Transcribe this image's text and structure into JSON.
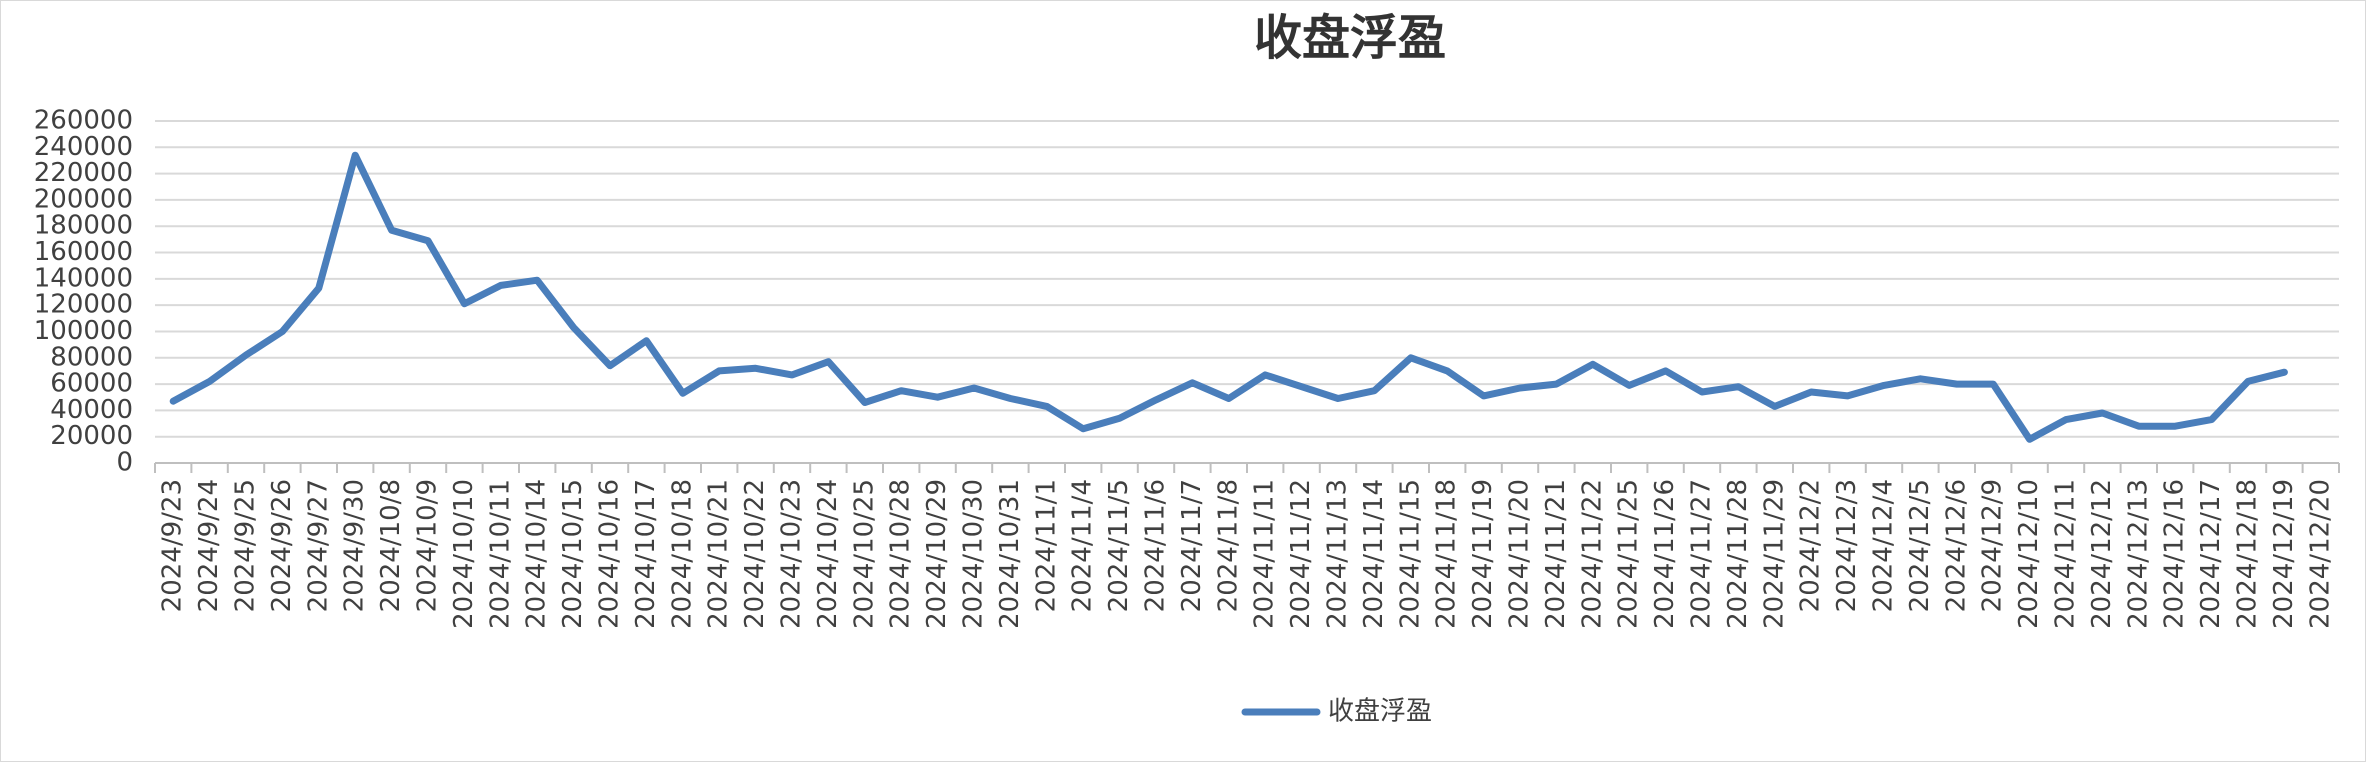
{
  "chart_data": {
    "type": "line",
    "title": "收盘浮盈",
    "categories": [
      "2024/9/23",
      "2024/9/24",
      "2024/9/25",
      "2024/9/26",
      "2024/9/27",
      "2024/9/30",
      "2024/10/8",
      "2024/10/9",
      "2024/10/10",
      "2024/10/11",
      "2024/10/14",
      "2024/10/15",
      "2024/10/16",
      "2024/10/17",
      "2024/10/18",
      "2024/10/21",
      "2024/10/22",
      "2024/10/23",
      "2024/10/24",
      "2024/10/25",
      "2024/10/28",
      "2024/10/29",
      "2024/10/30",
      "2024/10/31",
      "2024/11/1",
      "2024/11/4",
      "2024/11/5",
      "2024/11/6",
      "2024/11/7",
      "2024/11/8",
      "2024/11/11",
      "2024/11/12",
      "2024/11/13",
      "2024/11/14",
      "2024/11/15",
      "2024/11/18",
      "2024/11/19",
      "2024/11/20",
      "2024/11/21",
      "2024/11/22",
      "2024/11/25",
      "2024/11/26",
      "2024/11/27",
      "2024/11/28",
      "2024/11/29",
      "2024/12/2",
      "2024/12/3",
      "2024/12/4",
      "2024/12/5",
      "2024/12/6",
      "2024/12/9",
      "2024/12/10",
      "2024/12/11",
      "2024/12/12",
      "2024/12/13",
      "2024/12/16",
      "2024/12/17",
      "2024/12/18",
      "2024/12/19",
      "2024/12/20"
    ],
    "series": [
      {
        "name": "收盘浮盈",
        "color": "#4a7ebb",
        "values": [
          47000,
          62000,
          82000,
          100000,
          133000,
          234000,
          177000,
          169000,
          121000,
          135000,
          139000,
          103000,
          74000,
          93000,
          53000,
          70000,
          72000,
          67000,
          77000,
          46000,
          55000,
          50000,
          57000,
          49000,
          43000,
          26000,
          34000,
          48000,
          61000,
          49000,
          67000,
          58000,
          49000,
          55000,
          80000,
          70000,
          51000,
          57000,
          60000,
          75000,
          59000,
          70000,
          54000,
          58000,
          43000,
          54000,
          51000,
          59000,
          64000,
          60000,
          60000,
          18000,
          33000,
          38000,
          28000,
          28000,
          33000,
          62000,
          69000,
          null
        ]
      }
    ],
    "ylim": [
      0,
      260000
    ],
    "yticks": [
      0,
      20000,
      40000,
      60000,
      80000,
      100000,
      120000,
      140000,
      160000,
      180000,
      200000,
      220000,
      240000,
      260000
    ],
    "grid": true,
    "legend": "bottom"
  }
}
